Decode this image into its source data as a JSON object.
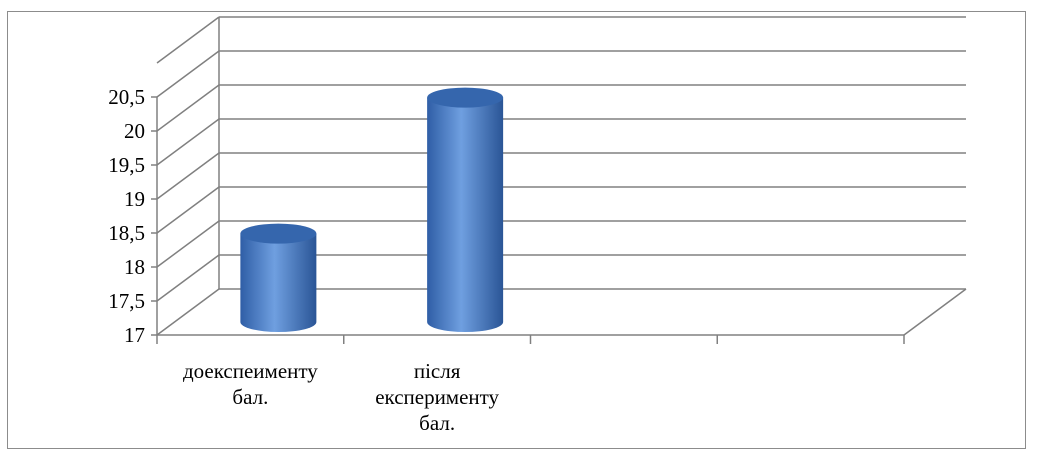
{
  "chart_data": {
    "type": "bar",
    "subtype": "3d-cylinder",
    "categories": [
      [
        "доекспеименту",
        "бал."
      ],
      [
        "після",
        "експерименту",
        "бал."
      ]
    ],
    "extra_category_slots": 2,
    "series": [
      {
        "values": [
          18.3,
          20.3
        ]
      }
    ],
    "ylim": [
      17,
      20.5
    ],
    "y_ticks": [
      "17",
      "17,5",
      "18",
      "18,5",
      "19",
      "19,5",
      "20",
      "20,5"
    ],
    "grid": true,
    "legend": "none",
    "colors": {
      "bar_light": "#6f9fe0",
      "bar_mid": "#4a7ec7",
      "bar_dark": "#2a5596",
      "bar_top": "#3566ad",
      "grid": "#808080",
      "frame": "#8c8c8c"
    }
  }
}
